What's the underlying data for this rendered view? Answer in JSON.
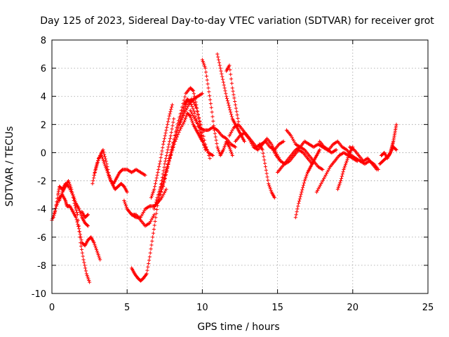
{
  "chart_data": {
    "type": "scatter",
    "title": "Day 125 of 2023, Sidereal Day-to-day VTEC variation (SDTVAR) for receiver grot",
    "xlabel": "GPS time / hours",
    "ylabel": "SDTVAR / TECUs",
    "xlim": [
      0,
      25
    ],
    "ylim": [
      -10,
      8
    ],
    "xticks": [
      0,
      5,
      10,
      15,
      20,
      25
    ],
    "yticks": [
      -10,
      -8,
      -6,
      -4,
      -2,
      0,
      2,
      4,
      6,
      8
    ],
    "grid": true,
    "marker": "+",
    "color": "#ff0000",
    "series": [
      {
        "name": "track-01",
        "x": [
          0.0,
          0.2,
          0.4,
          0.5,
          0.7,
          0.9,
          1.1,
          1.4,
          1.6,
          1.8,
          2.0,
          2.2,
          2.4
        ],
        "y": [
          -4.8,
          -4.2,
          -3.0,
          -2.4,
          -2.6,
          -2.2,
          -2.4,
          -3.0,
          -3.6,
          -4.0,
          -4.6,
          -5.0,
          -5.2
        ]
      },
      {
        "name": "track-02",
        "x": [
          0.1,
          0.3,
          0.5,
          0.7,
          0.9,
          1.0,
          1.2,
          1.4,
          1.6,
          1.8,
          2.0,
          2.2,
          2.4,
          2.6,
          2.8,
          3.0,
          3.2
        ],
        "y": [
          -4.6,
          -3.8,
          -3.2,
          -3.0,
          -3.4,
          -3.8,
          -3.8,
          -4.2,
          -4.6,
          -5.4,
          -6.4,
          -6.6,
          -6.2,
          -6.0,
          -6.4,
          -7.0,
          -7.6
        ]
      },
      {
        "name": "track-03",
        "x": [
          0.5,
          0.7,
          0.9,
          1.1,
          1.3,
          1.5,
          1.7,
          1.9,
          2.1,
          2.3,
          2.5
        ],
        "y": [
          -3.4,
          -2.8,
          -2.4,
          -2.0,
          -2.6,
          -3.6,
          -4.4,
          -6.4,
          -7.6,
          -8.6,
          -9.2
        ]
      },
      {
        "name": "track-04",
        "x": [
          2.0,
          2.2,
          2.4
        ],
        "y": [
          -4.2,
          -4.6,
          -4.4
        ]
      },
      {
        "name": "track-05",
        "x": [
          2.7,
          2.9,
          3.1,
          3.3,
          3.5,
          3.7,
          3.9,
          4.1,
          4.3,
          4.5,
          4.7,
          5.0,
          5.3,
          5.6,
          5.9,
          6.2
        ],
        "y": [
          -2.2,
          -1.2,
          -0.4,
          -0.2,
          -0.8,
          -1.4,
          -2.0,
          -2.2,
          -1.8,
          -1.4,
          -1.2,
          -1.2,
          -1.4,
          -1.2,
          -1.4,
          -1.6
        ]
      },
      {
        "name": "track-06",
        "x": [
          2.8,
          3.0,
          3.2,
          3.4,
          3.6,
          3.8,
          4.0,
          4.2,
          4.4,
          4.6,
          4.8,
          5.0
        ],
        "y": [
          -1.6,
          -0.8,
          -0.2,
          0.2,
          -0.6,
          -1.6,
          -2.2,
          -2.6,
          -2.4,
          -2.2,
          -2.4,
          -2.8
        ]
      },
      {
        "name": "track-07",
        "x": [
          4.8,
          5.0,
          5.3,
          5.6,
          5.9,
          6.2,
          6.5,
          6.8
        ],
        "y": [
          -3.4,
          -4.0,
          -4.4,
          -4.4,
          -4.8,
          -5.2,
          -5.0,
          -4.4
        ]
      },
      {
        "name": "track-08",
        "x": [
          5.0,
          5.3,
          5.6,
          5.9,
          6.2,
          6.5,
          6.8,
          7.0,
          7.3,
          7.6
        ],
        "y": [
          -4.0,
          -4.4,
          -4.6,
          -4.6,
          -4.0,
          -3.8,
          -3.8,
          -3.6,
          -3.2,
          -2.6
        ]
      },
      {
        "name": "track-09",
        "x": [
          5.3,
          5.5,
          5.7,
          5.9,
          6.1,
          6.3,
          6.5,
          6.7,
          6.9,
          7.1,
          7.3,
          7.5,
          7.7,
          7.9,
          8.1
        ],
        "y": [
          -8.2,
          -8.6,
          -8.9,
          -9.1,
          -8.9,
          -8.6,
          -7.4,
          -6.0,
          -4.6,
          -3.2,
          -2.0,
          -0.8,
          0.2,
          1.2,
          2.4
        ]
      },
      {
        "name": "track-10",
        "x": [
          6.6,
          6.8,
          7.0,
          7.2,
          7.4,
          7.6,
          7.8,
          8.0
        ],
        "y": [
          -3.2,
          -2.6,
          -1.6,
          -0.6,
          0.6,
          1.6,
          2.6,
          3.4
        ]
      },
      {
        "name": "track-11",
        "x": [
          6.8,
          7.0,
          7.3,
          7.6,
          7.9,
          8.2,
          8.5,
          8.8,
          9.0,
          9.2,
          9.4,
          9.6,
          9.8,
          10.0
        ],
        "y": [
          -4.0,
          -3.2,
          -2.2,
          -1.2,
          -0.2,
          0.8,
          1.6,
          2.2,
          2.8,
          2.6,
          2.0,
          1.6,
          1.2,
          0.8
        ]
      },
      {
        "name": "track-12",
        "x": [
          7.0,
          7.3,
          7.6,
          7.9,
          8.2,
          8.5,
          8.8,
          9.0,
          9.2,
          9.5,
          9.8,
          10.1,
          10.4,
          10.7
        ],
        "y": [
          -3.6,
          -2.6,
          -1.4,
          0.0,
          1.2,
          2.4,
          3.4,
          3.8,
          3.6,
          2.8,
          1.6,
          0.6,
          0.0,
          -0.2
        ]
      },
      {
        "name": "track-13",
        "x": [
          7.2,
          7.5,
          7.8,
          8.1,
          8.4,
          8.7,
          9.0,
          9.3,
          9.6,
          9.9,
          10.2,
          10.5
        ],
        "y": [
          -3.0,
          -1.8,
          -0.6,
          0.6,
          1.8,
          2.8,
          3.6,
          3.8,
          3.2,
          2.0,
          0.6,
          -0.4
        ]
      },
      {
        "name": "track-14",
        "x": [
          7.4,
          7.7,
          8.0,
          8.3,
          8.6,
          8.9,
          9.2,
          9.4,
          9.6,
          9.8,
          10.0,
          10.2
        ],
        "y": [
          -2.4,
          -1.0,
          0.4,
          1.8,
          3.0,
          4.2,
          4.6,
          4.4,
          3.4,
          2.2,
          1.0,
          0.2
        ]
      },
      {
        "name": "track-15",
        "x": [
          8.5,
          8.8,
          9.1,
          9.4,
          9.7,
          10.0
        ],
        "y": [
          2.0,
          2.8,
          3.4,
          3.8,
          4.0,
          4.2
        ]
      },
      {
        "name": "track-16",
        "x": [
          9.2,
          9.5,
          9.8,
          10.1,
          10.4,
          10.7,
          11.0,
          11.3,
          11.6,
          11.9,
          12.2
        ],
        "y": [
          3.0,
          2.4,
          1.8,
          1.6,
          1.6,
          1.8,
          1.6,
          1.2,
          1.0,
          0.6,
          0.4
        ]
      },
      {
        "name": "track-17",
        "x": [
          10.0,
          10.2,
          10.4,
          10.6,
          10.8,
          11.0,
          11.2,
          11.4,
          11.6,
          11.8,
          12.0
        ],
        "y": [
          6.6,
          6.0,
          4.6,
          3.2,
          1.6,
          0.4,
          -0.2,
          0.2,
          0.8,
          0.4,
          -0.2
        ]
      },
      {
        "name": "track-18",
        "x": [
          11.0,
          11.2,
          11.4,
          11.6,
          11.8,
          12.0,
          12.2,
          12.4,
          12.6,
          12.8
        ],
        "y": [
          7.0,
          6.0,
          5.0,
          4.0,
          3.2,
          2.4,
          2.0,
          1.6,
          1.2,
          0.8
        ]
      },
      {
        "name": "track-19",
        "x": [
          11.6,
          11.8,
          12.0,
          12.2,
          12.4
        ],
        "y": [
          5.8,
          6.2,
          4.6,
          3.4,
          2.2
        ]
      },
      {
        "name": "track-20",
        "x": [
          11.8,
          12.1,
          12.4,
          12.7,
          13.0,
          13.3,
          13.6,
          13.9,
          14.2,
          14.5,
          14.8,
          15.1,
          15.4
        ],
        "y": [
          1.2,
          1.8,
          2.0,
          1.6,
          1.2,
          0.8,
          0.4,
          0.6,
          0.8,
          0.4,
          0.2,
          0.6,
          0.8
        ]
      },
      {
        "name": "track-21",
        "x": [
          12.2,
          12.5,
          12.8,
          13.1,
          13.4,
          13.7,
          14.0,
          14.3,
          14.6,
          14.9,
          15.2
        ],
        "y": [
          0.8,
          1.2,
          1.4,
          1.0,
          0.4,
          0.2,
          0.6,
          1.0,
          0.6,
          0.0,
          -0.6
        ]
      },
      {
        "name": "track-22",
        "x": [
          13.8,
          14.0,
          14.2,
          14.4,
          14.6,
          14.8
        ],
        "y": [
          0.6,
          0.2,
          -1.0,
          -2.2,
          -2.8,
          -3.2
        ]
      },
      {
        "name": "track-23",
        "x": [
          14.6,
          14.9,
          15.2,
          15.5,
          15.8,
          16.1,
          16.4,
          16.7,
          17.0,
          17.3
        ],
        "y": [
          0.4,
          -0.2,
          -0.6,
          -0.8,
          -0.6,
          -0.2,
          0.2,
          0.0,
          -0.4,
          -0.8
        ]
      },
      {
        "name": "track-24",
        "x": [
          15.0,
          15.3,
          15.6,
          15.9,
          16.2,
          16.5,
          16.8,
          17.1,
          17.4,
          17.7,
          18.0
        ],
        "y": [
          -1.4,
          -1.0,
          -0.6,
          -0.2,
          0.2,
          0.4,
          0.2,
          -0.2,
          -0.6,
          -1.0,
          -1.2
        ]
      },
      {
        "name": "track-25",
        "x": [
          15.6,
          15.9,
          16.2,
          16.5,
          16.8,
          17.1,
          17.4,
          17.7,
          18.0,
          18.3,
          18.6,
          18.9
        ],
        "y": [
          1.6,
          1.2,
          0.6,
          0.4,
          0.8,
          0.6,
          0.4,
          0.6,
          0.4,
          0.2,
          0.0,
          0.2
        ]
      },
      {
        "name": "track-26",
        "x": [
          16.2,
          16.4,
          16.6,
          16.8,
          17.0,
          17.2,
          17.4,
          17.6,
          17.8
        ],
        "y": [
          -4.6,
          -3.6,
          -2.8,
          -2.0,
          -1.4,
          -1.0,
          -0.6,
          -0.2,
          0.2
        ]
      },
      {
        "name": "track-27",
        "x": [
          17.6,
          17.9,
          18.2,
          18.5,
          18.8,
          19.1,
          19.4,
          19.7,
          20.0,
          20.3
        ],
        "y": [
          -2.8,
          -2.2,
          -1.6,
          -1.0,
          -0.6,
          -0.2,
          0.0,
          -0.2,
          -0.4,
          -0.6
        ]
      },
      {
        "name": "track-28",
        "x": [
          17.8,
          18.1,
          18.4,
          18.7,
          19.0,
          19.3,
          19.6,
          19.9,
          20.2,
          20.5,
          20.8,
          21.1,
          21.4,
          21.7
        ],
        "y": [
          0.8,
          0.4,
          0.2,
          0.6,
          0.8,
          0.4,
          0.2,
          -0.2,
          -0.4,
          -0.6,
          -0.8,
          -0.6,
          -0.8,
          -1.2
        ]
      },
      {
        "name": "track-29",
        "x": [
          19.0,
          19.2,
          19.4,
          19.6,
          19.8,
          20.0
        ],
        "y": [
          -2.6,
          -2.0,
          -1.2,
          -0.6,
          0.0,
          0.4
        ]
      },
      {
        "name": "track-30",
        "x": [
          19.8,
          20.1,
          20.4,
          20.7,
          21.0,
          21.3,
          21.6
        ],
        "y": [
          0.4,
          0.2,
          -0.2,
          -0.6,
          -0.4,
          -0.8,
          -1.2
        ]
      },
      {
        "name": "track-31",
        "x": [
          21.8,
          22.0,
          22.2,
          22.4,
          22.5,
          22.6,
          22.7,
          22.8,
          22.9
        ],
        "y": [
          -0.8,
          -0.6,
          -0.4,
          -0.2,
          0.0,
          0.4,
          0.8,
          1.4,
          2.0
        ]
      },
      {
        "name": "track-32",
        "x": [
          21.9,
          22.1,
          22.3,
          22.5,
          22.7,
          22.9
        ],
        "y": [
          -0.2,
          0.0,
          -0.4,
          0.0,
          0.4,
          0.2
        ]
      }
    ]
  }
}
